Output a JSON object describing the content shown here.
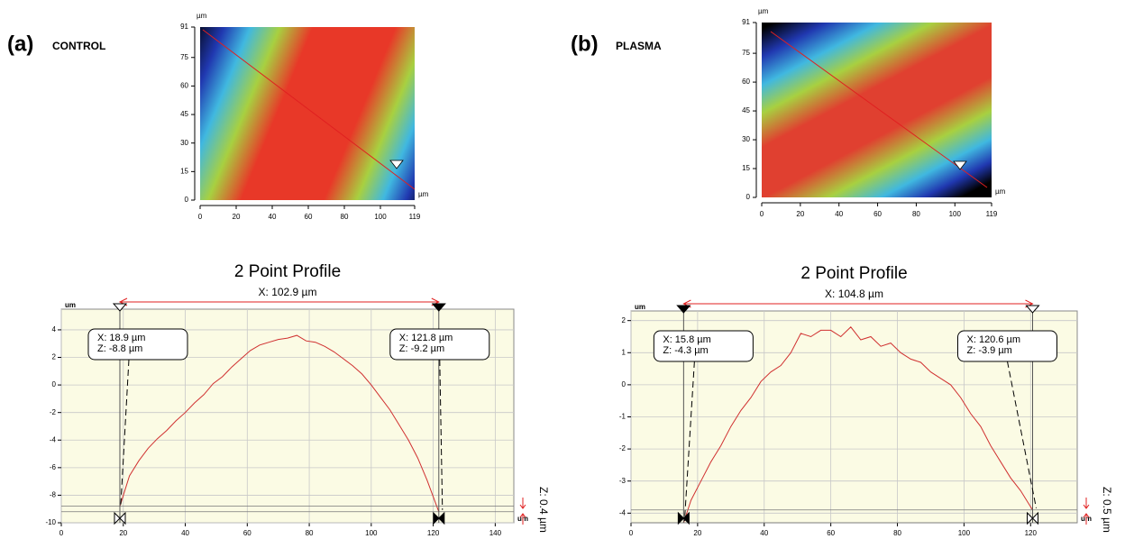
{
  "chart_data": [
    {
      "type": "heatmap",
      "panel_label": "(a)",
      "panel_name": "CONTROL",
      "x_unit": "µm",
      "y_unit": "µm",
      "xlim": [
        0,
        119
      ],
      "ylim": [
        0,
        91
      ],
      "xticks": [
        0,
        20,
        40,
        60,
        80,
        100,
        119
      ],
      "yticks": [
        0,
        15,
        30,
        45,
        60,
        75,
        91
      ]
    },
    {
      "type": "heatmap",
      "panel_label": "(b)",
      "panel_name": "PLASMA",
      "x_unit": "µm",
      "y_unit": "µm",
      "xlim": [
        0,
        119
      ],
      "ylim": [
        0,
        91
      ],
      "xticks": [
        0,
        20,
        40,
        60,
        80,
        100,
        119
      ],
      "yticks": [
        0,
        15,
        30,
        45,
        60,
        75,
        91
      ]
    },
    {
      "type": "line",
      "title": "2 Point Profile",
      "subtitle": "X: 102.9 µm",
      "y_label": "um",
      "x_label": "um",
      "side_label": "Z: 0.4 µm",
      "xlim": [
        0,
        146
      ],
      "ylim": [
        -10,
        5.5
      ],
      "xticks": [
        0,
        20,
        40,
        60,
        80,
        100,
        120,
        140
      ],
      "yticks": [
        -10,
        -8,
        -6,
        -4,
        -2,
        0,
        2,
        4
      ],
      "grid": true,
      "color": "#d03030",
      "x": [
        18.9,
        22,
        25,
        28,
        31,
        34,
        37,
        40,
        43,
        46,
        49,
        52,
        55,
        58,
        61,
        64,
        67,
        70,
        73,
        76,
        79,
        82,
        85,
        88,
        91,
        94,
        97,
        100,
        103,
        106,
        109,
        112,
        115,
        118,
        121.8
      ],
      "values": [
        -8.8,
        -6.6,
        -5.5,
        -4.6,
        -3.9,
        -3.3,
        -2.6,
        -2.0,
        -1.3,
        -0.7,
        0.1,
        0.6,
        1.3,
        1.9,
        2.5,
        2.9,
        3.1,
        3.3,
        3.4,
        3.6,
        3.2,
        3.1,
        2.8,
        2.4,
        1.9,
        1.4,
        0.8,
        0.0,
        -0.9,
        -1.8,
        -2.9,
        -4.0,
        -5.3,
        -6.9,
        -9.2
      ],
      "markers": [
        {
          "x": 18.9,
          "z": -8.8,
          "x_label": "X: 18.9 µm",
          "z_label": "Z: -8.8 µm"
        },
        {
          "x": 121.8,
          "z": -9.2,
          "x_label": "X: 121.8 µm",
          "z_label": "Z: -9.2 µm"
        }
      ]
    },
    {
      "type": "line",
      "title": "2 Point Profile",
      "subtitle": "X: 104.8 µm",
      "y_label": "um",
      "x_label": "um",
      "side_label": "Z: 0.5 µm",
      "xlim": [
        0,
        134
      ],
      "ylim": [
        -4.3,
        2.3
      ],
      "xticks": [
        0,
        20,
        40,
        60,
        80,
        100,
        120
      ],
      "yticks": [
        -4,
        -3,
        -2,
        -1,
        0,
        1,
        2
      ],
      "grid": true,
      "color": "#d03030",
      "x": [
        15.8,
        18,
        21,
        24,
        27,
        30,
        33,
        36,
        39,
        42,
        45,
        48,
        51,
        54,
        57,
        60,
        63,
        66,
        69,
        72,
        75,
        78,
        81,
        84,
        87,
        90,
        93,
        96,
        99,
        102,
        105,
        108,
        111,
        114,
        117,
        120.6
      ],
      "values": [
        -4.3,
        -3.6,
        -3.0,
        -2.4,
        -1.9,
        -1.3,
        -0.8,
        -0.4,
        0.1,
        0.4,
        0.6,
        1.0,
        1.6,
        1.5,
        1.7,
        1.7,
        1.5,
        1.8,
        1.4,
        1.5,
        1.2,
        1.3,
        1.0,
        0.8,
        0.7,
        0.4,
        0.2,
        0.0,
        -0.4,
        -0.9,
        -1.3,
        -1.9,
        -2.4,
        -2.9,
        -3.3,
        -3.9
      ],
      "markers": [
        {
          "x": 15.8,
          "z": -4.3,
          "x_label": "X: 15.8 µm",
          "z_label": "Z: -4.3 µm"
        },
        {
          "x": 120.6,
          "z": -3.9,
          "x_label": "X: 120.6 µm",
          "z_label": "Z: -3.9 µm"
        }
      ]
    }
  ]
}
